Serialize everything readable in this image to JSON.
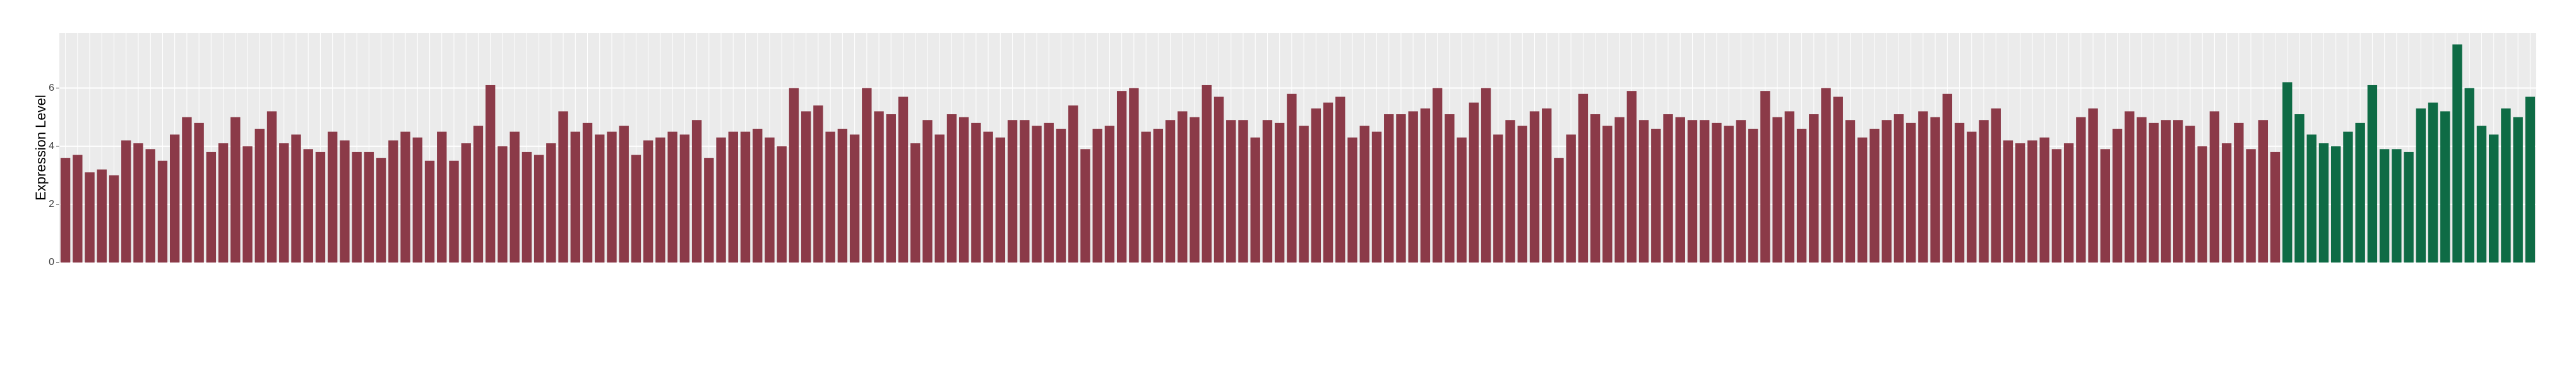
{
  "chart_data": {
    "type": "bar",
    "y_label": "Expression Level",
    "ylim": [
      0,
      7.9
    ],
    "yticks": [
      0,
      2,
      4,
      6
    ],
    "grid": true,
    "groups": [
      {
        "color": "#8b3a48",
        "values": [
          3.6,
          3.7,
          3.1,
          3.2,
          3.0,
          4.2,
          4.1,
          3.9,
          3.5,
          4.4,
          5.0,
          4.8,
          3.8,
          4.1,
          5.0,
          4.0,
          4.6,
          5.2,
          4.1,
          4.4,
          3.9,
          3.8,
          4.5,
          4.2,
          3.8,
          3.8,
          3.6,
          4.2,
          4.5,
          4.3,
          3.5,
          4.5,
          3.5,
          4.1,
          4.7,
          6.1,
          4.0,
          4.5,
          3.8,
          3.7,
          4.1,
          5.2,
          4.5,
          4.8,
          4.4,
          4.5,
          4.7,
          3.7,
          4.2,
          4.3,
          4.5,
          4.4,
          4.9,
          3.6,
          4.3,
          4.5,
          4.5,
          4.6,
          4.3,
          4.0,
          6.0,
          5.2,
          5.4,
          4.5,
          4.6,
          4.4,
          6.0,
          5.2,
          5.1,
          5.7,
          4.1,
          4.9,
          4.4,
          5.1,
          5.0,
          4.8,
          4.5,
          4.3,
          4.9,
          4.9,
          4.7,
          4.8,
          4.6,
          5.4,
          3.9,
          4.6,
          4.7,
          5.9,
          6.0,
          4.5,
          4.6,
          4.9,
          5.2,
          5.0,
          6.1,
          5.7,
          4.9,
          4.9,
          4.3,
          4.9,
          4.8,
          5.8,
          4.7,
          5.3,
          5.5,
          5.7,
          4.3,
          4.7,
          4.5,
          5.1,
          5.1,
          5.2,
          5.3,
          6.0,
          5.1,
          4.3,
          5.5,
          6.0,
          4.4,
          4.9,
          4.7,
          5.2,
          5.3,
          3.6,
          4.4,
          5.8,
          5.1,
          4.7,
          5.0,
          5.9,
          4.9,
          4.6,
          5.1,
          5.0,
          4.9,
          4.9,
          4.8,
          4.7,
          4.9,
          4.6,
          5.9,
          5.0,
          5.2,
          4.6,
          5.1,
          6.0,
          5.7,
          4.9,
          4.3,
          4.6,
          4.9,
          5.1,
          4.8,
          5.2,
          5.0,
          5.8,
          4.8,
          4.5,
          4.9,
          5.3,
          4.2,
          4.1,
          4.2,
          4.3,
          3.9,
          4.1,
          5.0,
          5.3,
          3.9,
          4.6,
          5.2,
          5.0,
          4.8,
          4.9,
          4.9,
          4.7,
          4.0,
          5.2,
          4.1,
          4.8,
          3.9,
          4.9,
          3.8
        ]
      },
      {
        "color": "#0e6b45",
        "values": [
          6.2,
          5.1,
          4.4,
          4.1,
          4.0,
          4.5,
          4.8,
          6.1,
          3.9,
          3.9,
          3.8,
          5.3,
          5.5,
          5.2,
          7.5,
          6.0,
          4.7,
          4.4,
          5.3,
          5.0,
          5.7
        ]
      }
    ]
  }
}
